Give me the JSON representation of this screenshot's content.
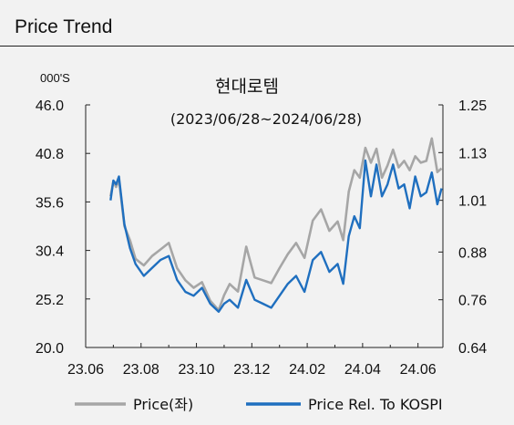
{
  "header": {
    "title": "Price Trend"
  },
  "chart_data": {
    "type": "line",
    "title": "현대로템",
    "subtitle": "(2023/06/28~2024/06/28)",
    "y_unit_label": "000'S",
    "x_tick_labels": [
      "23.06",
      "23.08",
      "23.10",
      "23.12",
      "24.02",
      "24.04",
      "24.06"
    ],
    "y_left": {
      "ticks": [
        "46.0",
        "40.8",
        "35.6",
        "30.4",
        "25.2",
        "20.0"
      ],
      "range": [
        20.0,
        46.0
      ]
    },
    "y_right": {
      "ticks": [
        "1.25",
        "1.13",
        "1.01",
        "0.88",
        "0.76",
        "0.64"
      ],
      "range": [
        0.64,
        1.25
      ]
    },
    "x_range_months": [
      0,
      12.9
    ],
    "grid": false,
    "legend_position": "bottom",
    "colors": {
      "price": "#a6a6a6",
      "relative": "#1f6fbf"
    },
    "series": [
      {
        "name": "Price(좌)",
        "axis": "left",
        "color": "#a6a6a6",
        "x": [
          0.9,
          1.0,
          1.1,
          1.2,
          1.4,
          1.6,
          1.8,
          2.1,
          2.4,
          2.7,
          3.0,
          3.3,
          3.6,
          3.9,
          4.2,
          4.5,
          4.8,
          5.0,
          5.2,
          5.5,
          5.8,
          6.1,
          6.4,
          6.7,
          7.0,
          7.3,
          7.6,
          7.9,
          8.2,
          8.5,
          8.8,
          9.1,
          9.3,
          9.5,
          9.7,
          9.9,
          10.1,
          10.3,
          10.5,
          10.7,
          10.9,
          11.1,
          11.3,
          11.5,
          11.7,
          11.9,
          12.1,
          12.3,
          12.5,
          12.7,
          12.85
        ],
        "values": [
          36.2,
          37.8,
          37.2,
          38.0,
          33.0,
          31.5,
          29.5,
          28.8,
          29.8,
          30.5,
          31.2,
          28.5,
          27.2,
          26.4,
          27.0,
          25.0,
          24.0,
          25.6,
          26.8,
          26.0,
          30.8,
          27.5,
          27.2,
          26.9,
          28.5,
          30.0,
          31.2,
          29.6,
          33.6,
          34.8,
          32.5,
          33.5,
          31.5,
          36.7,
          39.0,
          38.2,
          41.4,
          39.8,
          41.3,
          38.2,
          39.5,
          41.2,
          39.3,
          40.0,
          39.0,
          40.5,
          39.8,
          40.0,
          42.4,
          38.8,
          39.2
        ]
      },
      {
        "name": "Price Rel. To KOSPI",
        "axis": "right",
        "color": "#1f6fbf",
        "x": [
          0.9,
          1.0,
          1.1,
          1.2,
          1.4,
          1.6,
          1.8,
          2.1,
          2.4,
          2.7,
          3.0,
          3.3,
          3.6,
          3.9,
          4.2,
          4.5,
          4.8,
          5.0,
          5.2,
          5.5,
          5.8,
          6.1,
          6.4,
          6.7,
          7.0,
          7.3,
          7.6,
          7.9,
          8.2,
          8.5,
          8.8,
          9.1,
          9.3,
          9.5,
          9.7,
          9.9,
          10.1,
          10.3,
          10.5,
          10.7,
          10.9,
          11.1,
          11.3,
          11.5,
          11.7,
          11.9,
          12.1,
          12.3,
          12.5,
          12.7,
          12.85
        ],
        "values": [
          1.01,
          1.06,
          1.05,
          1.07,
          0.95,
          0.89,
          0.85,
          0.82,
          0.84,
          0.86,
          0.87,
          0.81,
          0.78,
          0.77,
          0.79,
          0.75,
          0.73,
          0.75,
          0.76,
          0.74,
          0.81,
          0.76,
          0.75,
          0.74,
          0.77,
          0.8,
          0.82,
          0.78,
          0.86,
          0.88,
          0.83,
          0.85,
          0.8,
          0.92,
          0.97,
          0.94,
          1.11,
          1.02,
          1.1,
          1.02,
          1.05,
          1.1,
          1.04,
          1.05,
          0.99,
          1.07,
          1.02,
          1.03,
          1.08,
          1.0,
          1.04
        ]
      }
    ]
  }
}
